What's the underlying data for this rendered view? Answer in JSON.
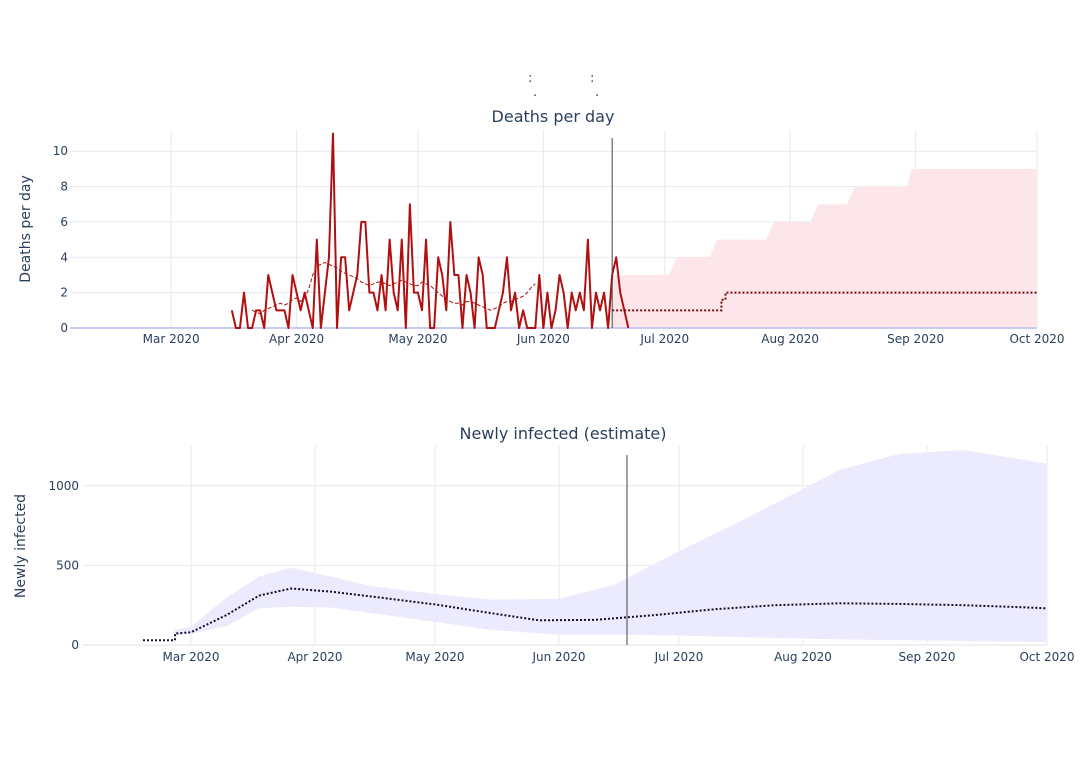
{
  "header": {
    "fragment_1": ":",
    "fragment_2": ":",
    "fragment_3": ".",
    "fragment_4": "."
  },
  "colors": {
    "deaths_line": "#b01010",
    "deaths_band": "#fde6ea",
    "infected_band": "#ecebfd",
    "forecast_line": "#6b0d0d",
    "infected_line": "#1a0a2e",
    "grid": "#e5e9f0",
    "text": "#2a3f5f",
    "divider": "#444444"
  },
  "chart_data": [
    {
      "type": "line",
      "title": "Deaths per day",
      "xlabel": "",
      "ylabel": "Deaths per day",
      "x_ticks": [
        "Mar 2020",
        "Apr 2020",
        "May 2020",
        "Jun 2020",
        "Jul 2020",
        "Aug 2020",
        "Sep 2020",
        "Oct 2020"
      ],
      "x_tick_dates": [
        "2020-03-01",
        "2020-04-01",
        "2020-05-01",
        "2020-06-01",
        "2020-07-01",
        "2020-08-01",
        "2020-09-01",
        "2020-10-01"
      ],
      "x_range": [
        "2020-02-05",
        "2020-10-01"
      ],
      "y_ticks": [
        0,
        2,
        4,
        6,
        8,
        10
      ],
      "ylim": [
        0,
        11.2
      ],
      "grid": true,
      "legend": "none",
      "divider_date": "2020-06-18",
      "series": [
        {
          "kind": "observed",
          "start": "2020-03-16",
          "values": [
            1,
            0,
            0,
            2,
            0,
            0,
            1,
            1,
            0,
            3,
            2,
            1,
            1,
            1,
            0,
            3,
            2,
            1,
            2,
            1,
            0,
            5,
            0,
            2,
            4,
            11,
            0,
            4,
            4,
            1,
            2,
            3,
            6,
            6,
            2,
            2,
            1,
            3,
            1,
            5,
            2,
            1,
            5,
            0,
            7,
            2,
            2,
            1,
            5,
            0,
            0,
            4,
            3,
            1,
            6,
            3,
            3,
            0,
            3,
            2,
            0,
            4,
            3,
            0,
            0,
            0,
            1,
            2,
            4,
            1,
            2,
            0,
            1,
            0,
            0,
            0,
            3,
            0,
            2,
            0,
            1,
            3,
            2,
            0,
            2,
            1,
            2,
            1,
            5,
            0,
            2,
            1,
            2,
            0,
            3,
            4,
            2,
            1,
            0
          ]
        },
        {
          "kind": "rolling-average",
          "start": "2020-03-21",
          "values": [
            1.0,
            0.9,
            0.8,
            1.0,
            1.1,
            1.2,
            1.3,
            1.4,
            1.3,
            1.4,
            1.6,
            1.7,
            1.5,
            1.7,
            2.2,
            3.0,
            3.5,
            3.6,
            3.7,
            3.6,
            3.5,
            3.4,
            3.2,
            3.1,
            3.0,
            2.9,
            2.8,
            2.6,
            2.5,
            2.4,
            2.5,
            2.6,
            2.6,
            2.5,
            2.4,
            2.5,
            2.6,
            2.7,
            2.6,
            2.5,
            2.4,
            2.4,
            2.6,
            2.5,
            2.4,
            2.2,
            2.0,
            1.8,
            1.6,
            1.5,
            1.4,
            1.4,
            1.3,
            1.5,
            1.5,
            1.4,
            1.3,
            1.2,
            1.1,
            1.0,
            1.1,
            1.2,
            1.4,
            1.5,
            1.5,
            1.6,
            1.7,
            1.8,
            2.0,
            2.3,
            2.5
          ]
        },
        {
          "kind": "forecast-median",
          "x": [
            "2020-06-18",
            "2020-07-15",
            "2020-07-15",
            "2020-07-16",
            "2020-07-16",
            "2020-10-01"
          ],
          "values": [
            1,
            1,
            1.6,
            1.6,
            2,
            2
          ]
        },
        {
          "kind": "forecast-band",
          "x": [
            "2020-06-18",
            "2020-07-02",
            "2020-07-04",
            "2020-07-12",
            "2020-07-14",
            "2020-07-26",
            "2020-07-28",
            "2020-08-06",
            "2020-08-08",
            "2020-08-15",
            "2020-08-17",
            "2020-08-30",
            "2020-08-31",
            "2020-10-01"
          ],
          "upper": [
            3,
            3,
            4,
            4,
            5,
            5,
            6,
            6,
            7,
            7,
            8,
            8,
            9,
            9
          ],
          "lower": [
            0,
            0,
            0,
            0,
            0,
            0,
            0,
            0,
            0,
            0,
            0,
            0,
            0,
            0
          ]
        }
      ]
    },
    {
      "type": "area",
      "title": "Newly infected (estimate)",
      "xlabel": "",
      "ylabel": "Newly infected",
      "x_ticks": [
        "Mar 2020",
        "Apr 2020",
        "May 2020",
        "Jun 2020",
        "Jul 2020",
        "Aug 2020",
        "Sep 2020",
        "Oct 2020"
      ],
      "x_tick_dates": [
        "2020-03-01",
        "2020-04-01",
        "2020-05-01",
        "2020-06-01",
        "2020-07-01",
        "2020-08-01",
        "2020-09-01",
        "2020-10-01"
      ],
      "x_range": [
        "2020-02-03",
        "2020-10-01"
      ],
      "y_ticks": [
        0,
        500,
        1000
      ],
      "ylim": [
        0,
        1250
      ],
      "grid": true,
      "legend": "none",
      "divider_date": "2020-06-18",
      "series": [
        {
          "kind": "median",
          "x": [
            "2020-02-18",
            "2020-02-26",
            "2020-02-26",
            "2020-03-01",
            "2020-03-10",
            "2020-03-18",
            "2020-03-26",
            "2020-04-05",
            "2020-04-15",
            "2020-05-01",
            "2020-05-15",
            "2020-05-27",
            "2020-06-10",
            "2020-06-25",
            "2020-07-10",
            "2020-07-25",
            "2020-08-10",
            "2020-08-25",
            "2020-09-10",
            "2020-09-25",
            "2020-10-01"
          ],
          "values": [
            30,
            30,
            72,
            80,
            190,
            310,
            355,
            335,
            305,
            255,
            200,
            155,
            158,
            188,
            225,
            250,
            262,
            258,
            250,
            237,
            230
          ]
        },
        {
          "kind": "band",
          "x": [
            "2020-02-26",
            "2020-03-01",
            "2020-03-10",
            "2020-03-18",
            "2020-03-26",
            "2020-04-05",
            "2020-04-15",
            "2020-05-01",
            "2020-05-15",
            "2020-06-01",
            "2020-06-15",
            "2020-07-01",
            "2020-07-15",
            "2020-08-01",
            "2020-08-10",
            "2020-08-25",
            "2020-09-10",
            "2020-10-01"
          ],
          "upper": [
            95,
            115,
            300,
            430,
            485,
            430,
            370,
            320,
            285,
            290,
            380,
            590,
            760,
            980,
            1100,
            1200,
            1225,
            1140
          ],
          "lower": [
            60,
            70,
            120,
            230,
            240,
            235,
            200,
            145,
            95,
            65,
            65,
            60,
            50,
            40,
            35,
            30,
            25,
            18
          ]
        }
      ]
    }
  ]
}
